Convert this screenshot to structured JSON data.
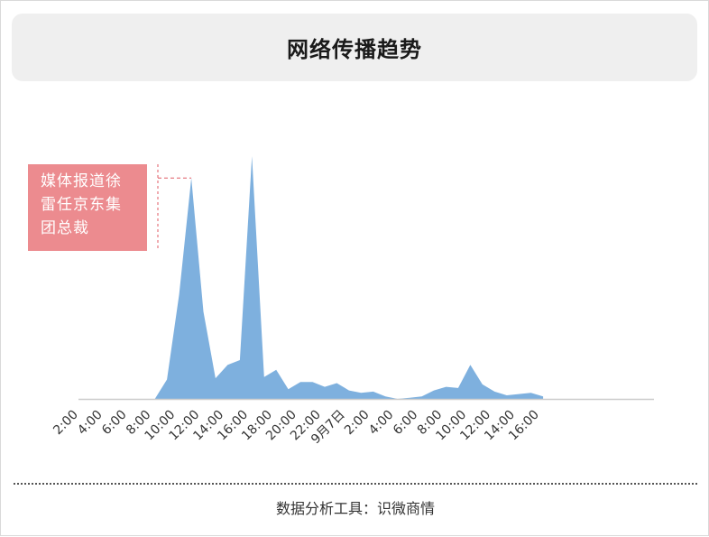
{
  "title": "网络传播趋势",
  "annotation": {
    "text": "媒体报道徐雷任京东集团总裁",
    "lines": [
      "媒体报道徐",
      "雷任京东集",
      "团总裁"
    ],
    "color": "#ec8b8f"
  },
  "footer": "数据分析工具：识微商情",
  "colors": {
    "area": "#7eb0de",
    "axis": "#cccccc",
    "marker": "#e05a63"
  },
  "chart_data": {
    "type": "area",
    "title": "网络传播趋势",
    "xlabel": "",
    "ylabel": "",
    "y_axis_shown": false,
    "grid": false,
    "tick_labels": [
      "2:00",
      "4:00",
      "6:00",
      "8:00",
      "10:00",
      "12:00",
      "14:00",
      "16:00",
      "18:00",
      "20:00",
      "22:00",
      "9月7日",
      "2:00",
      "4:00",
      "6:00",
      "8:00",
      "10:00",
      "12:00",
      "14:00",
      "16:00"
    ],
    "x": [
      "2:00",
      "3:00",
      "4:00",
      "5:00",
      "6:00",
      "7:00",
      "8:00",
      "9:00",
      "10:00",
      "11:00",
      "12:00",
      "13:00",
      "14:00",
      "15:00",
      "16:00",
      "17:00",
      "18:00",
      "19:00",
      "20:00",
      "21:00",
      "22:00",
      "23:00",
      "9月7日",
      "1:00",
      "2:00",
      "3:00",
      "4:00",
      "5:00",
      "6:00",
      "7:00",
      "8:00",
      "9:00",
      "10:00",
      "11:00",
      "12:00",
      "13:00",
      "14:00",
      "15:00",
      "16:00"
    ],
    "values": [
      0,
      0,
      0,
      0,
      0,
      0,
      0,
      8,
      43,
      91,
      36,
      8.5,
      14,
      16,
      100,
      9,
      12,
      4,
      7,
      7,
      5,
      6.5,
      3.5,
      2.5,
      3,
      1,
      0,
      0.5,
      1,
      3.5,
      5,
      4.5,
      14,
      6,
      3,
      1.5,
      2,
      2.5,
      1
    ],
    "ylim": [
      0,
      100
    ],
    "annotation_index": 9
  }
}
